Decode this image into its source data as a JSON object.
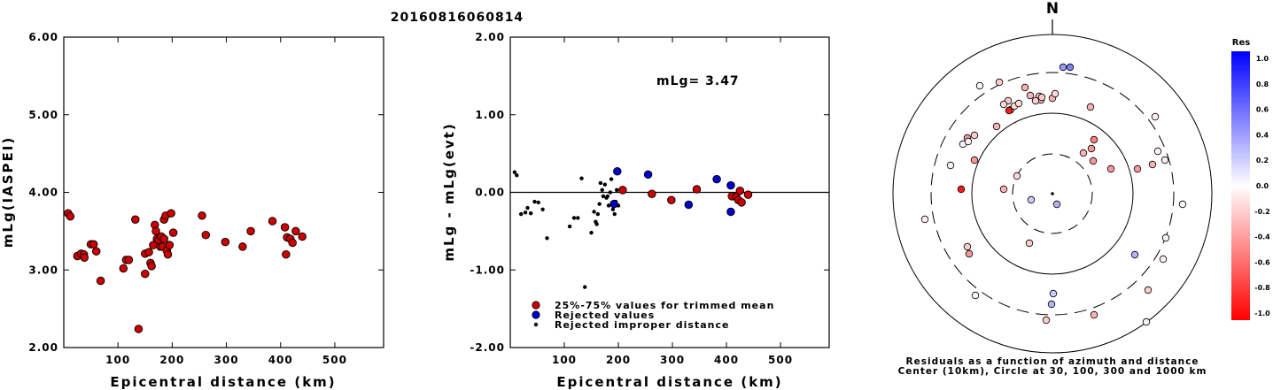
{
  "title": "20160816060814",
  "charts": {
    "left": {
      "type": "scatter",
      "xlabel": "Epicentral distance (km)",
      "ylabel": "mLg(IASPEI)",
      "xlim": [
        0,
        590
      ],
      "ylim": [
        2.0,
        6.0
      ],
      "xticks": [
        "100",
        "200",
        "300",
        "400",
        "500"
      ],
      "yticks": [
        "2.00",
        "3.00",
        "4.00",
        "5.00",
        "6.00"
      ],
      "points": [
        [
          8,
          3.73
        ],
        [
          12,
          3.69
        ],
        [
          25,
          3.18
        ],
        [
          32,
          3.21
        ],
        [
          37,
          3.2
        ],
        [
          38,
          3.16
        ],
        [
          50,
          3.33
        ],
        [
          55,
          3.33
        ],
        [
          60,
          3.24
        ],
        [
          68,
          2.86
        ],
        [
          110,
          3.02
        ],
        [
          115,
          3.13
        ],
        [
          120,
          3.13
        ],
        [
          132,
          3.65
        ],
        [
          138,
          2.24
        ],
        [
          150,
          2.95
        ],
        [
          150,
          3.21
        ],
        [
          157,
          3.23
        ],
        [
          160,
          3.09
        ],
        [
          162,
          3.05
        ],
        [
          165,
          3.32
        ],
        [
          168,
          3.58
        ],
        [
          170,
          3.5
        ],
        [
          172,
          3.4
        ],
        [
          175,
          3.38
        ],
        [
          178,
          3.3
        ],
        [
          180,
          3.43
        ],
        [
          182,
          3.3
        ],
        [
          185,
          3.4
        ],
        [
          185,
          3.65
        ],
        [
          188,
          3.7
        ],
        [
          190,
          3.25
        ],
        [
          192,
          3.2
        ],
        [
          195,
          3.32
        ],
        [
          198,
          3.73
        ],
        [
          202,
          3.48
        ],
        [
          255,
          3.7
        ],
        [
          262,
          3.45
        ],
        [
          298,
          3.36
        ],
        [
          330,
          3.3
        ],
        [
          345,
          3.5
        ],
        [
          385,
          3.63
        ],
        [
          408,
          3.55
        ],
        [
          410,
          3.2
        ],
        [
          412,
          3.42
        ],
        [
          418,
          3.4
        ],
        [
          422,
          3.35
        ],
        [
          428,
          3.5
        ],
        [
          440,
          3.43
        ]
      ]
    },
    "middle": {
      "type": "scatter",
      "xlabel": "Epicentral distance (km)",
      "ylabel": "mLg - mLg(evt)",
      "xlim": [
        0,
        590
      ],
      "ylim": [
        -2.0,
        2.0
      ],
      "xticks": [
        "100",
        "200",
        "300",
        "400",
        "500"
      ],
      "yticks": [
        "-2.00",
        "-1.00",
        "0.00",
        "1.00",
        "2.00"
      ],
      "annotation": "mLg= 3.47",
      "trimmed": [
        [
          208,
          0.03
        ],
        [
          262,
          -0.02
        ],
        [
          298,
          -0.1
        ],
        [
          345,
          0.04
        ],
        [
          410,
          -0.05
        ],
        [
          418,
          -0.06
        ],
        [
          422,
          -0.1
        ],
        [
          425,
          0.02
        ],
        [
          428,
          -0.13
        ],
        [
          440,
          -0.03
        ]
      ],
      "rejected": [
        [
          198,
          0.27
        ],
        [
          192,
          -0.15
        ],
        [
          255,
          0.23
        ],
        [
          330,
          -0.16
        ],
        [
          382,
          0.17
        ],
        [
          408,
          0.09
        ],
        [
          408,
          -0.25
        ]
      ],
      "improper": [
        [
          8,
          0.26
        ],
        [
          12,
          0.22
        ],
        [
          20,
          -0.28
        ],
        [
          28,
          -0.26
        ],
        [
          32,
          -0.2
        ],
        [
          38,
          -0.27
        ],
        [
          45,
          -0.12
        ],
        [
          52,
          -0.13
        ],
        [
          60,
          -0.22
        ],
        [
          68,
          -0.59
        ],
        [
          110,
          -0.44
        ],
        [
          118,
          -0.33
        ],
        [
          125,
          -0.33
        ],
        [
          132,
          0.18
        ],
        [
          138,
          -1.22
        ],
        [
          150,
          -0.52
        ],
        [
          155,
          -0.25
        ],
        [
          158,
          -0.38
        ],
        [
          160,
          -0.41
        ],
        [
          162,
          -0.28
        ],
        [
          165,
          -0.15
        ],
        [
          167,
          0.12
        ],
        [
          170,
          0.03
        ],
        [
          172,
          -0.05
        ],
        [
          175,
          0.1
        ],
        [
          178,
          -0.07
        ],
        [
          180,
          -0.05
        ],
        [
          182,
          -0.17
        ],
        [
          185,
          0.0
        ],
        [
          187,
          0.17
        ],
        [
          190,
          -0.22
        ],
        [
          193,
          -0.28
        ],
        [
          195,
          -0.12
        ],
        [
          197,
          0.03
        ],
        [
          200,
          -0.17
        ]
      ],
      "legend": [
        {
          "label": "25%-75% values for trimmed mean",
          "color": "#cc0000"
        },
        {
          "label": "Rejected values",
          "color": "#0000cc"
        },
        {
          "label": "Rejected improper distance",
          "color": "#000000"
        }
      ]
    },
    "polar": {
      "north_label": "N",
      "caption_line1": "Residuals as a function of azimuth and distance",
      "caption_line2": "Center (10km), Circle at 30, 100, 300 and 1000 km",
      "points": [
        [
          1200,
          76,
          0.4
        ],
        [
          1208,
          76,
          0.5
        ],
        [
          1106,
          97,
          -0.05
        ],
        [
          1128,
          93,
          -0.2
        ],
        [
          1157,
          99,
          -0.3
        ],
        [
          1163,
          108,
          -0.3
        ],
        [
          1173,
          109,
          -0.2
        ],
        [
          1175,
          113,
          -0.3
        ],
        [
          1169,
          114,
          -0.2
        ],
        [
          1176,
          110,
          -0.2
        ],
        [
          1188,
          111,
          -0.3
        ],
        [
          1191,
          106,
          -0.15
        ],
        [
          1138,
          114,
          -0.2
        ],
        [
          1133,
          118,
          -0.15
        ],
        [
          1141,
          124,
          -0.3
        ],
        [
          1139,
          125,
          -0.9
        ],
        [
          1145,
          120,
          -0.15
        ],
        [
          1150,
          117,
          -0.15
        ],
        [
          1231,
          121,
          -0.3
        ],
        [
          1304,
          132,
          -0.05
        ],
        [
          1125,
          143,
          -0.3
        ],
        [
          1092,
          156,
          -0.4
        ],
        [
          1100,
          153,
          -0.2
        ],
        [
          1087,
          163,
          0.05
        ],
        [
          1093,
          160,
          -0.05
        ],
        [
          1235,
          158,
          -0.5
        ],
        [
          1232,
          168,
          -0.4
        ],
        [
          1223,
          173,
          -0.3
        ],
        [
          1307,
          171,
          -0.05
        ],
        [
          1100,
          181,
          -0.4
        ],
        [
          1301,
          186,
          -0.3
        ],
        [
          1315,
          181,
          -0.05
        ],
        [
          1073,
          187,
          -0.05
        ],
        [
          1234,
          182,
          -0.4
        ],
        [
          1254,
          191,
          -0.4
        ],
        [
          1284,
          191,
          -0.4
        ],
        [
          1148,
          199,
          -0.15
        ],
        [
          1335,
          231,
          -0.05
        ],
        [
          1085,
          214,
          -0.9
        ],
        [
          1133,
          214,
          -0.3
        ],
        [
          1164,
          226,
          0.2
        ],
        [
          1193,
          231,
          0.3
        ],
        [
          1044,
          248,
          -0.05
        ],
        [
          1316,
          269,
          -0.05
        ],
        [
          1162,
          275,
          -0.2
        ],
        [
          1092,
          279,
          -0.2
        ],
        [
          1094,
          287,
          -0.4
        ],
        [
          1313,
          293,
          -0.05
        ],
        [
          1281,
          288,
          0.3
        ],
        [
          1296,
          328,
          -0.2
        ],
        [
          1101,
          334,
          -0.05
        ],
        [
          1189,
          332,
          0.2
        ],
        [
          1187,
          344,
          0.3
        ],
        [
          1235,
          356,
          -0.3
        ],
        [
          1181,
          362,
          -0.2
        ],
        [
          1294,
          364,
          -0.05
        ]
      ]
    },
    "colorbar": {
      "title": "Res",
      "labels": [
        "1.0",
        "0.8",
        "0.6",
        "0.4",
        "0.2",
        "0.0",
        "-0.2",
        "-0.4",
        "-0.6",
        "-0.8",
        "-1.0"
      ]
    }
  }
}
